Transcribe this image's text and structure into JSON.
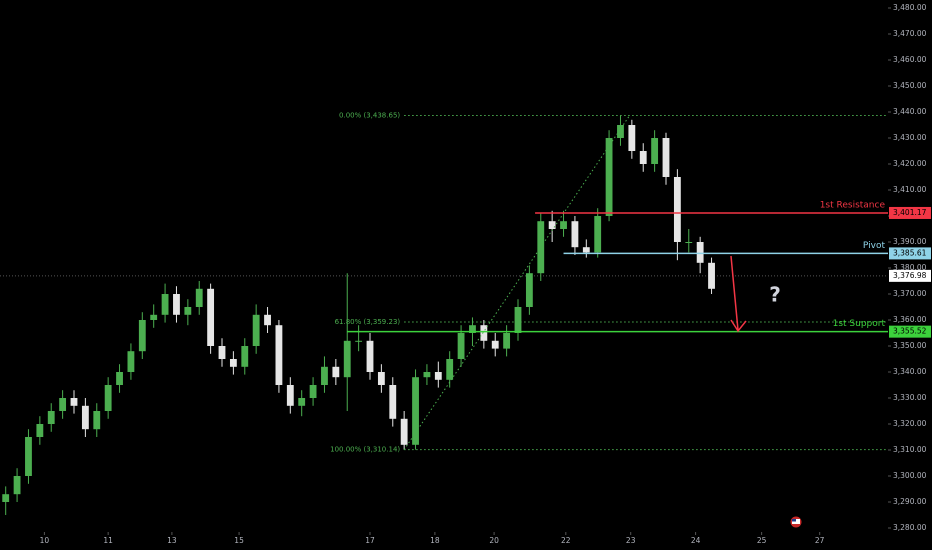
{
  "chart_data": {
    "type": "candlestick",
    "up_color": "#4caf50",
    "down_color": "#e6e6e6",
    "xlim": [
      0,
      78
    ],
    "xticks": [
      {
        "value": 3.9,
        "label": "10"
      },
      {
        "value": 9.5,
        "label": "11"
      },
      {
        "value": 15.1,
        "label": "13"
      },
      {
        "value": 21,
        "label": "15"
      },
      {
        "value": 32.5,
        "label": "17"
      },
      {
        "value": 38.2,
        "label": "18"
      },
      {
        "value": 43.4,
        "label": "20"
      },
      {
        "value": 49.7,
        "label": "22"
      },
      {
        "value": 55.4,
        "label": "23"
      },
      {
        "value": 61.1,
        "label": "24"
      },
      {
        "value": 66.9,
        "label": "25"
      },
      {
        "value": 72,
        "label": "27"
      }
    ],
    "ylim": [
      3278.46,
      3483.08
    ],
    "yticks": [
      {
        "value": 3280,
        "label": "3,280.00"
      },
      {
        "value": 3290,
        "label": "3,290.00"
      },
      {
        "value": 3300,
        "label": "3,300.00"
      },
      {
        "value": 3310,
        "label": "3,310.00"
      },
      {
        "value": 3320,
        "label": "3,320.00"
      },
      {
        "value": 3330,
        "label": "3,330.00"
      },
      {
        "value": 3340,
        "label": "3,340.00"
      },
      {
        "value": 3350,
        "label": "3,350.00"
      },
      {
        "value": 3360,
        "label": "3,360.00"
      },
      {
        "value": 3370,
        "label": "3,370.00"
      },
      {
        "value": 3380,
        "label": "3,380.00"
      },
      {
        "value": 3390,
        "label": "3,390.00"
      },
      {
        "value": 3400,
        "label": "3,400.00"
      },
      {
        "value": 3410,
        "label": "3,410.00"
      },
      {
        "value": 3420,
        "label": "3,420.00"
      },
      {
        "value": 3430,
        "label": "3,430.00"
      },
      {
        "value": 3440,
        "label": "3,440.00"
      },
      {
        "value": 3450,
        "label": "3,450.00"
      },
      {
        "value": 3460,
        "label": "3,460.00"
      },
      {
        "value": 3470,
        "label": "3,470.00"
      },
      {
        "value": 3480,
        "label": "3,480.00"
      }
    ],
    "open": [
      3290,
      3293,
      3300,
      3315,
      3320,
      3325,
      3330,
      3327,
      3318,
      3325,
      3335,
      3340,
      3348,
      3360,
      3362,
      3370,
      3362,
      3365,
      3372,
      3350,
      3345,
      3342,
      3350,
      3362,
      3358,
      3335,
      3327,
      3330,
      3335,
      3342,
      3338,
      3352,
      3352,
      3340,
      3335,
      3322,
      3312,
      3338,
      3340,
      3337,
      3345,
      3355,
      3358,
      3352,
      3349,
      3355,
      3365,
      3378,
      3398,
      3395,
      3398,
      3388,
      3386,
      3400,
      3430,
      3435,
      3425,
      3420,
      3430,
      3415,
      3390,
      3390,
      3382
    ],
    "high": [
      3296,
      3303,
      3318,
      3323,
      3328,
      3333,
      3333,
      3330,
      3328,
      3338,
      3343,
      3351,
      3363,
      3366,
      3374,
      3373,
      3368,
      3375,
      3374,
      3353,
      3348,
      3353,
      3366,
      3365,
      3360,
      3338,
      3333,
      3338,
      3346,
      3345,
      3378,
      3358,
      3355,
      3343,
      3338,
      3325,
      3341,
      3343,
      3344,
      3348,
      3358,
      3361,
      3360,
      3355,
      3358,
      3368,
      3381,
      3401,
      3402,
      3402,
      3400,
      3391,
      3403,
      3433,
      3438.65,
      3437,
      3428,
      3433,
      3432,
      3418,
      3395,
      3392,
      3384
    ],
    "low": [
      3285,
      3290,
      3297,
      3312,
      3317,
      3322,
      3324,
      3315,
      3315,
      3322,
      3332,
      3337,
      3345,
      3357,
      3359,
      3359,
      3358,
      3362,
      3347,
      3342,
      3339,
      3339,
      3347,
      3355,
      3332,
      3324,
      3323,
      3327,
      3332,
      3335,
      3325,
      3348,
      3337,
      3332,
      3319,
      3310.14,
      3310.14,
      3335,
      3334,
      3334,
      3342,
      3350,
      3349,
      3346,
      3346,
      3352,
      3362,
      3375,
      3390,
      3392,
      3385,
      3384,
      3384,
      3398,
      3427,
      3422,
      3417,
      3417,
      3412,
      3383,
      3386,
      3378,
      3370
    ],
    "close": [
      3293,
      3300,
      3315,
      3320,
      3325,
      3330,
      3327,
      3318,
      3325,
      3335,
      3340,
      3348,
      3360,
      3362,
      3370,
      3362,
      3365,
      3372,
      3350,
      3345,
      3342,
      3350,
      3362,
      3358,
      3335,
      3327,
      3330,
      3335,
      3342,
      3338,
      3352,
      3352,
      3340,
      3335,
      3322,
      3312,
      3338,
      3340,
      3337,
      3345,
      3355,
      3358,
      3352,
      3349,
      3355,
      3365,
      3378,
      3398,
      3395,
      3398,
      3388,
      3386,
      3400,
      3430,
      3435,
      3425,
      3420,
      3430,
      3415,
      3390,
      3390,
      3382,
      3372
    ],
    "fib_levels": [
      {
        "label": "0.00% (3,438.65)",
        "value": 3438.65
      },
      {
        "label": "61.80% (3,359.23)",
        "value": 3359.23
      },
      {
        "label": "100.00% (3,310.14)",
        "value": 3310.14
      }
    ],
    "levels": [
      {
        "name": "1st Resistance",
        "value": 3401.17,
        "value_label": "3,401.17",
        "color": "#f23645",
        "start": 47
      },
      {
        "name": "Pivot",
        "value": 3385.61,
        "value_label": "3,385.61",
        "color": "#8fd3e8",
        "start": 49.5
      },
      {
        "name": "1st Support",
        "value": 3355.52,
        "value_label": "3,355.52",
        "color": "#3cd23c",
        "start": 30.5
      }
    ],
    "last_price": {
      "value": 3376.98,
      "label": "3,376.98"
    },
    "annotation": "?"
  }
}
